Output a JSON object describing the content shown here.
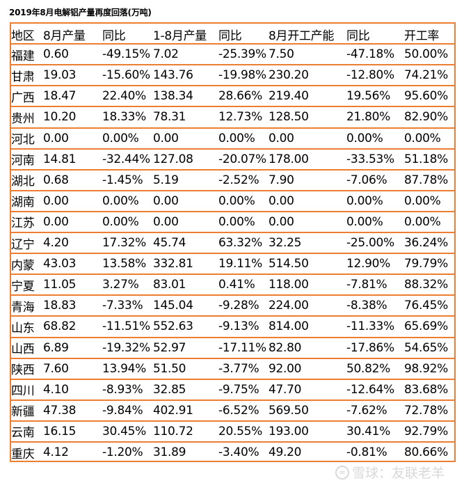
{
  "title": "2019年8月电解铝产量再度回落(万吨)",
  "colors": {
    "border": "#ED7D31",
    "text": "#000000",
    "watermark": "#D9D9D9"
  },
  "table": {
    "headers": [
      "地区",
      "8月产量",
      "同比",
      "1-8月产量",
      "同比",
      "8月开工产能",
      "同比",
      "开工率"
    ],
    "rows": [
      [
        "福建",
        "0.60",
        "-49.15%",
        "7.02",
        "-25.39%",
        "7.50",
        "-47.18%",
        "50.00%"
      ],
      [
        "甘肃",
        "19.03",
        "-15.60%",
        "143.76",
        "-19.98%",
        "230.20",
        "-12.80%",
        "74.21%"
      ],
      [
        "广西",
        "18.47",
        "22.40%",
        "138.34",
        "28.66%",
        "219.40",
        "19.56%",
        "95.60%"
      ],
      [
        "贵州",
        "10.20",
        "18.33%",
        "78.31",
        "12.73%",
        "128.50",
        "21.80%",
        "82.90%"
      ],
      [
        "河北",
        "0.00",
        "0.00%",
        "0.00",
        "0.00%",
        "0.00",
        "0.00%",
        "0.00%"
      ],
      [
        "河南",
        "14.81",
        "-32.44%",
        "127.08",
        "-20.07%",
        "178.00",
        "-33.53%",
        "51.18%"
      ],
      [
        "湖北",
        "0.68",
        "-1.45%",
        "5.19",
        "-2.52%",
        "7.90",
        "-7.06%",
        "87.78%"
      ],
      [
        "湖南",
        "0.00",
        "0.00%",
        "0.00",
        "0.00%",
        "0.00",
        "0.00%",
        "0.00%"
      ],
      [
        "江苏",
        "0.00",
        "0.00%",
        "0.00",
        "0.00%",
        "0.00",
        "0.00%",
        "0.00%"
      ],
      [
        "辽宁",
        "4.20",
        "17.32%",
        "45.74",
        "63.32%",
        "32.25",
        "-25.00%",
        "36.24%"
      ],
      [
        "内蒙",
        "43.03",
        "13.58%",
        "332.81",
        "19.11%",
        "514.50",
        "12.90%",
        "79.79%"
      ],
      [
        "宁夏",
        "11.05",
        "3.27%",
        "83.01",
        "0.41%",
        "118.00",
        "-7.81%",
        "88.32%"
      ],
      [
        "青海",
        "18.83",
        "-7.33%",
        "145.04",
        "-9.28%",
        "224.00",
        "-8.38%",
        "76.45%"
      ],
      [
        "山东",
        "68.82",
        "-11.51%",
        "552.63",
        "-9.13%",
        "814.00",
        "-11.33%",
        "65.69%"
      ],
      [
        "山西",
        "6.89",
        "-19.32%",
        "52.97",
        "-17.11%",
        "82.80",
        "-17.86%",
        "54.65%"
      ],
      [
        "陕西",
        "7.60",
        "13.94%",
        "51.50",
        "-3.77%",
        "92.00",
        "50.82%",
        "98.92%"
      ],
      [
        "四川",
        "4.10",
        "-8.93%",
        "32.85",
        "-9.75%",
        "47.70",
        "-12.64%",
        "83.68%"
      ],
      [
        "新疆",
        "47.38",
        "-9.84%",
        "402.91",
        "-6.52%",
        "569.50",
        "-7.62%",
        "72.78%"
      ],
      [
        "云南",
        "16.15",
        "30.45%",
        "110.72",
        "20.55%",
        "193.00",
        "30.41%",
        "92.79%"
      ],
      [
        "重庆",
        "4.12",
        "-1.20%",
        "31.89",
        "-3.40%",
        "49.20",
        "-0.81%",
        "80.66%"
      ]
    ]
  },
  "watermark": {
    "icon": "xueqiu-logo-icon",
    "logo_glyph": "ⓧ",
    "text": "雪球：友联老羊"
  }
}
